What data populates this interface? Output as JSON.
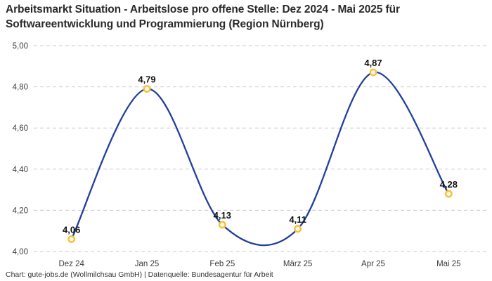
{
  "header": {
    "title_line1": "Arbeitsmarkt Situation - Arbeitslose pro offene Stelle: Dez 2024 - Mai 2025 für",
    "title_line2": "Softwareentwicklung und Programmierung (Region Nürnberg)"
  },
  "chart_data": {
    "type": "line",
    "title": "Arbeitsmarkt Situation - Arbeitslose pro offene Stelle: Dez 2024 - Mai 2025 für Softwareentwicklung und Programmierung (Region Nürnberg)",
    "categories": [
      "Dez 24",
      "Jan 25",
      "Feb 25",
      "März 25",
      "Apr 25",
      "Mai 25"
    ],
    "values": [
      4.06,
      4.79,
      4.13,
      4.11,
      4.87,
      4.28
    ],
    "point_labels": [
      "4,06",
      "4,79",
      "4,13",
      "4,11",
      "4,87",
      "4,28"
    ],
    "ylim": [
      4.0,
      5.0
    ],
    "ytick_values": [
      4.0,
      4.2,
      4.4,
      4.6,
      4.8,
      5.0
    ],
    "ytick_labels": [
      "4,00",
      "4,20",
      "4,40",
      "4,60",
      "4,80",
      "5,00"
    ],
    "xlabel": "",
    "ylabel": "",
    "grid": "horizontal-dashed",
    "legend": "none",
    "curve": "smooth",
    "colors": {
      "line": "#21409a",
      "marker_stroke": "#fcbf2d",
      "marker_fill": "#ffffff",
      "grid": "#cbcbcb",
      "tick_text": "#3c3c3c",
      "point_label_text": "#111111"
    }
  },
  "footer": {
    "attribution": "Chart: gute-jobs.de (Wollmilchsau GmbH) | Datenquelle: Bundesagentur für Arbeit"
  }
}
